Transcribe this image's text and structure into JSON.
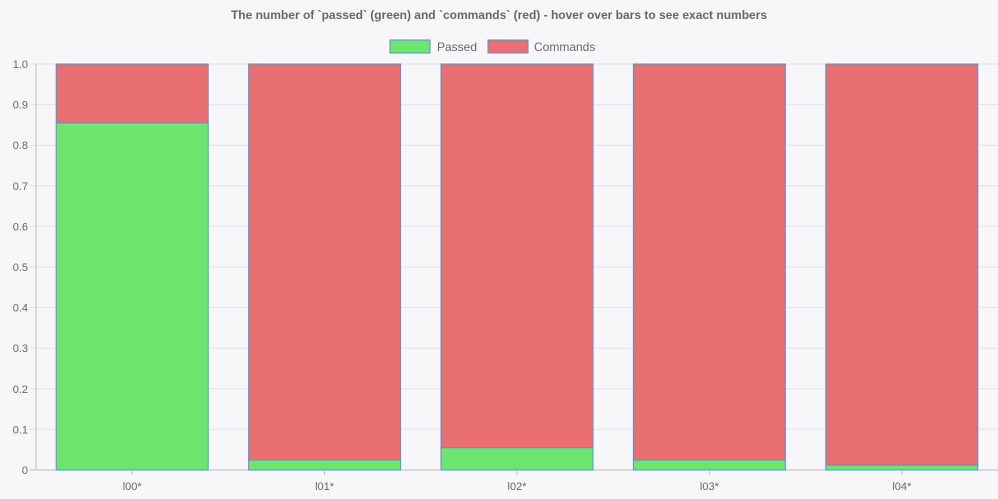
{
  "chart_data": {
    "type": "bar",
    "stacked": true,
    "title": "The number of `passed` (green) and `commands` (red) - hover over bars to see exact numbers",
    "categories": [
      "l00*",
      "l01*",
      "l02*",
      "l03*",
      "l04*"
    ],
    "series": [
      {
        "name": "Passed",
        "values": [
          0.855,
          0.025,
          0.055,
          0.025,
          0.012
        ],
        "color": "#6ee66e"
      },
      {
        "name": "Commands",
        "values": [
          0.145,
          0.975,
          0.945,
          0.975,
          0.988
        ],
        "color": "#e87070"
      }
    ],
    "bar_border_color": "#5b8fd6",
    "ylim": [
      0,
      1.0
    ],
    "yticks": [
      "0",
      "0.1",
      "0.2",
      "0.3",
      "0.4",
      "0.5",
      "0.6",
      "0.7",
      "0.8",
      "0.9",
      "1.0"
    ],
    "grid": true,
    "legend_position": "top-center"
  }
}
